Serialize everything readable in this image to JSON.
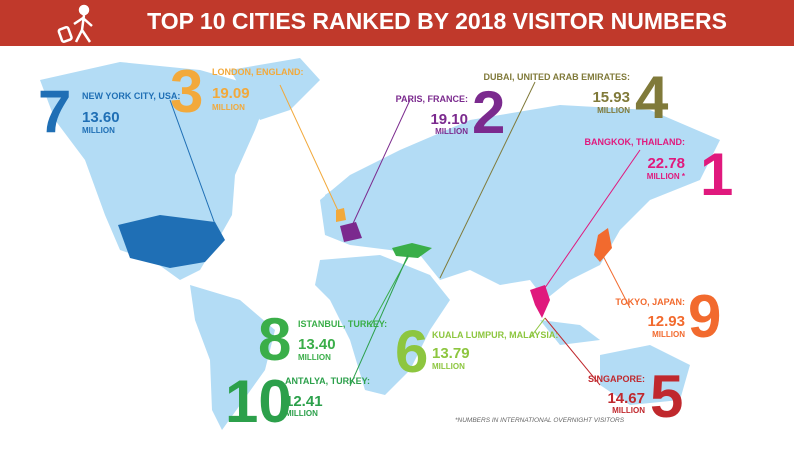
{
  "header": {
    "title": "TOP 10 CITIES RANKED BY 2018 VISITOR NUMBERS"
  },
  "cities": [
    {
      "rank": 1,
      "name": "BANGKOK, THAILAND:",
      "value": "22.78",
      "unit": "MILLION *"
    },
    {
      "rank": 2,
      "name": "PARIS, FRANCE:",
      "value": "19.10",
      "unit": "MILLION"
    },
    {
      "rank": 3,
      "name": "LONDON, ENGLAND:",
      "value": "19.09",
      "unit": "MILLION"
    },
    {
      "rank": 4,
      "name": "DUBAI, UNITED ARAB EMIRATES:",
      "value": "15.93",
      "unit": "MILLION"
    },
    {
      "rank": 5,
      "name": "SINGAPORE:",
      "value": "14.67",
      "unit": "MILLION"
    },
    {
      "rank": 6,
      "name": "KUALA LUMPUR, MALAYSIA:",
      "value": "13.79",
      "unit": "MILLION"
    },
    {
      "rank": 7,
      "name": "NEW YORK CITY, USA:",
      "value": "13.60",
      "unit": "MILLION"
    },
    {
      "rank": 8,
      "name": "ISTANBUL, TURKEY:",
      "value": "13.40",
      "unit": "MILLION"
    },
    {
      "rank": 9,
      "name": "TOKYO, JAPAN:",
      "value": "12.93",
      "unit": "MILLION"
    },
    {
      "rank": 10,
      "name": "ANTALYA, TURKEY:",
      "value": "12.41",
      "unit": "MILLION"
    }
  ],
  "footnote": "*NUMBERS IN INTERNATIONAL OVERNIGHT VISITORS"
}
